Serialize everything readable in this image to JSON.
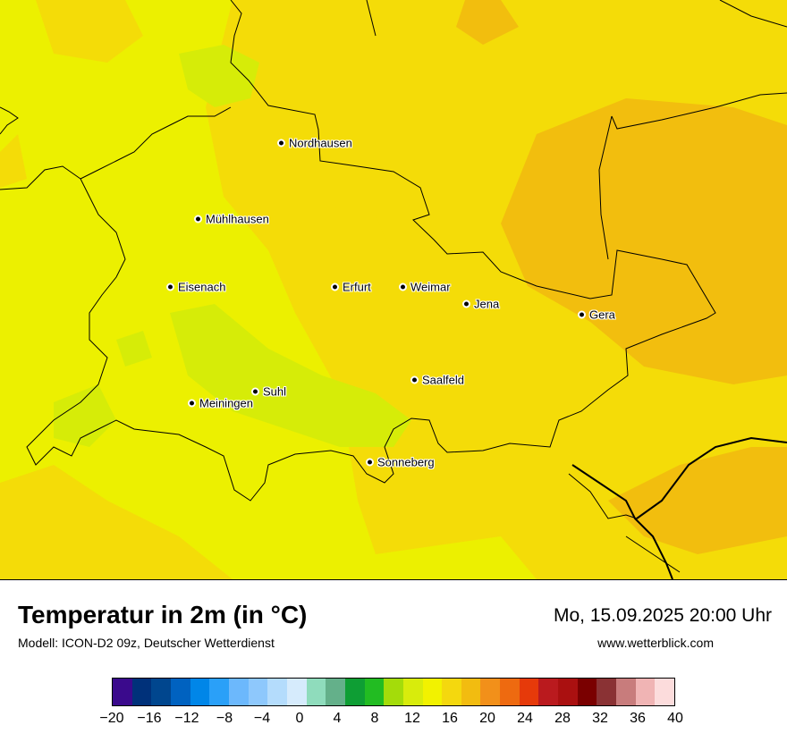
{
  "header": {
    "title": "Temperatur in 2m (in °C)",
    "model": "Modell: ICON-D2 09z, Deutscher Wetterdienst",
    "datetime": "Mo, 15.09.2025 20:00 Uhr",
    "website": "www.wetterblick.com"
  },
  "cities": [
    {
      "name": "Nordhausen"
    },
    {
      "name": "Mühlhausen"
    },
    {
      "name": "Eisenach"
    },
    {
      "name": "Erfurt"
    },
    {
      "name": "Weimar"
    },
    {
      "name": "Jena"
    },
    {
      "name": "Gera"
    },
    {
      "name": "Saalfeld"
    },
    {
      "name": "Suhl"
    },
    {
      "name": "Meiningen"
    },
    {
      "name": "Sonneberg"
    }
  ],
  "legend": {
    "min": -20,
    "max": 40,
    "step": 2,
    "tick_labels": [
      "−20",
      "−16",
      "−12",
      "−8",
      "−4",
      "0",
      "4",
      "8",
      "12",
      "16",
      "20",
      "24",
      "28",
      "32",
      "36",
      "40"
    ],
    "colors": [
      "#3a0a8c",
      "#00317a",
      "#00468e",
      "#0062c0",
      "#0086e8",
      "#2aa0f8",
      "#6cb8fc",
      "#8ec8fc",
      "#b4dcfc",
      "#d6ebfc",
      "#8fdcbc",
      "#64b08a",
      "#0e9e34",
      "#22bc22",
      "#a4dc0a",
      "#d8ec0c",
      "#f2f200",
      "#f4d80e",
      "#f2bc10",
      "#f2901a",
      "#ee6a10",
      "#e63a0a",
      "#ba1a1e",
      "#aa1010",
      "#7a0000",
      "#8a3234",
      "#c87c7c",
      "#f0b4b4",
      "#fcdcdc"
    ]
  }
}
